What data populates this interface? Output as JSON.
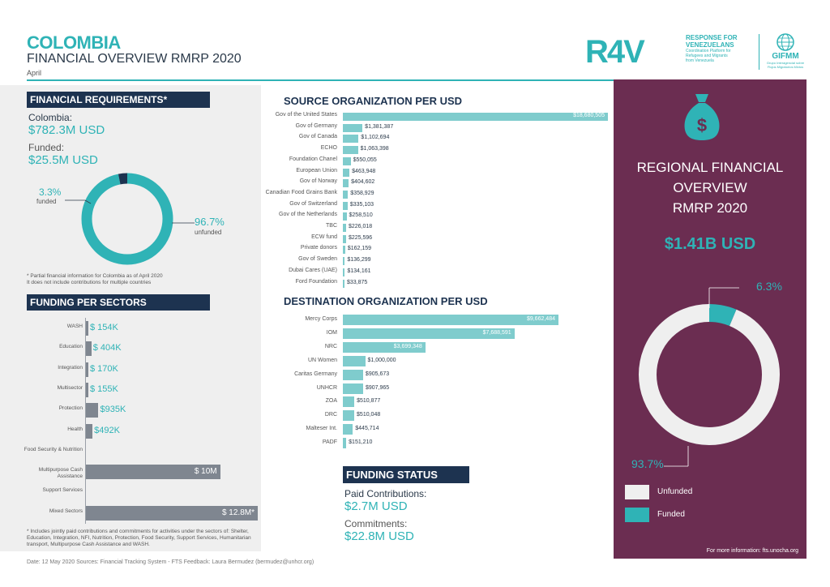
{
  "header": {
    "country": "COLOMBIA",
    "subtitle": "FINANCIAL OVERVIEW RMRP 2020",
    "month": "April"
  },
  "logo": {
    "r4v_text": "R4V",
    "r4v_line1": "RESPONSE FOR",
    "r4v_line2": "VENEZUELANS",
    "r4v_small1": "Coordination Platform for",
    "r4v_small2": "Refugees and Migrants",
    "r4v_small3": "from Venezuela",
    "gifmm_text": "GIFMM",
    "gifmm_small1": "Grupo Interagencial sobre",
    "gifmm_small2": "Flujos Migratorios Mixtos"
  },
  "financial_requirements": {
    "heading": "FINANCIAL REQUIREMENTS*",
    "req_label": "Colombia:",
    "req_value": "$782.3M USD",
    "funded_label": "Funded:",
    "funded_value": "$25.5M USD",
    "funded_pct": "3.3%",
    "funded_word": "funded",
    "unfunded_pct": "96.7%",
    "unfunded_word": "unfunded",
    "note_line1": "* Partial financial information for Colombia as of April 2020",
    "note_line2": "It does not include contributions for multiple countries"
  },
  "funding_sectors": {
    "heading": "FUNDING PER SECTORS",
    "note_line1": "* Includes jointly paid contributions and commitments for activities under the sectors of: Shelter,",
    "note_line2": "Education, Integration, NFI, Nutrition, Protection, Food Security, Support Services, Humanitarian",
    "note_line3": "transport, Multipurpose Cash Assistance and WASH."
  },
  "source_heading": "SOURCE ORGANIZATION PER USD",
  "destination_heading": "DESTINATION ORGANIZATION PER USD",
  "funding_status": {
    "heading": "FUNDING STATUS",
    "paid_label": "Paid Contributions:",
    "paid_value": "$2.7M USD",
    "commit_label": "Commitments:",
    "commit_value": "$22.8M USD"
  },
  "regional": {
    "line1": "REGIONAL FINANCIAL",
    "line2": "OVERVIEW",
    "line3": "RMRP 2020",
    "total": "$1.41B USD",
    "funded_pct": "6.3%",
    "unfunded_pct": "93.7%",
    "legend_unfunded": "Unfunded",
    "legend_funded": "Funded",
    "more_info": "For more information: fts.unocha.org"
  },
  "footer": {
    "text": "Date: 12 May 2020   Sources: Financial Tracking System - FTS   Feedback: Laura Bermudez (bermudez@unhcr.org)"
  },
  "colors": {
    "teal": "#2fb3b6",
    "navy": "#1d3350",
    "plum": "#6b2d51",
    "light_teal": "#7fcccd",
    "grey_bar": "#7f8690"
  },
  "chart_data": [
    {
      "type": "bar",
      "orientation": "horizontal",
      "title": "SOURCE ORGANIZATION PER USD",
      "categories": [
        "Gov of the United States",
        "Gov of Germany",
        "Gov of Canada",
        "ECHO",
        "Foundation Chanel",
        "European Union",
        "Gov of Norway",
        "Canadian Food Grains Bank",
        "Gov of Switzerland",
        "Gov of the Netherlands",
        "TBC",
        "ECW fund",
        "Private donors",
        "Gov of Sweden",
        "Dubai Cares (UAE)",
        "Ford Foundation"
      ],
      "values": [
        18680505,
        1381387,
        1102694,
        1063398,
        550055,
        463948,
        404602,
        358929,
        335103,
        258510,
        226018,
        225596,
        162159,
        136299,
        134161,
        33875
      ],
      "labels": [
        "$18,680,505",
        "$1,381,387",
        "$1,102,694",
        "$1,063,398",
        "$550,055",
        "$463,948",
        "$404,602",
        "$358,929",
        "$335,103",
        "$258,510",
        "$226,018",
        "$225,596",
        "$162,159",
        "$136,299",
        "$134,161",
        "$33,875"
      ]
    },
    {
      "type": "bar",
      "orientation": "horizontal",
      "title": "DESTINATION ORGANIZATION PER USD",
      "categories": [
        "Mercy Corps",
        "IOM",
        "NRC",
        "UN Women",
        "Caritas Germany",
        "UNHCR",
        "ZOA",
        "DRC",
        "Malteser Int.",
        "PADF"
      ],
      "values": [
        9662484,
        7688591,
        3699348,
        1000000,
        905673,
        907965,
        510877,
        510048,
        445714,
        151210
      ],
      "labels": [
        "$9,662,484",
        "$7,688,591",
        "$3,699,348",
        "$1,000,000",
        "$905,673",
        "$907,965",
        "$510,877",
        "$510,048",
        "$445,714",
        "$151,210"
      ]
    },
    {
      "type": "bar",
      "orientation": "horizontal",
      "title": "FUNDING PER SECTORS",
      "categories": [
        "WASH",
        "Education",
        "Integration",
        "Multisector",
        "Protection",
        "Health",
        "Food Security & Nutrition",
        "Multipurpose Cash Assistance",
        "Support Services",
        "Mixed Sectors"
      ],
      "values": [
        0.154,
        0.404,
        0.17,
        0.155,
        0.935,
        0.492,
        0,
        10,
        0,
        12.8
      ],
      "unit": "M USD",
      "labels": [
        "$ 154K",
        "$ 404K",
        "$ 170K",
        "$ 155K",
        "$935K",
        "$492K",
        "",
        "$ 10M",
        "",
        "$ 12.8M*"
      ]
    },
    {
      "type": "pie",
      "title": "Colombia",
      "categories": [
        "funded",
        "unfunded"
      ],
      "values": [
        3.3,
        96.7
      ]
    },
    {
      "type": "pie",
      "title": "REGIONAL FINANCIAL OVERVIEW RMRP 2020",
      "categories": [
        "Funded",
        "Unfunded"
      ],
      "values": [
        6.3,
        93.7
      ]
    }
  ]
}
